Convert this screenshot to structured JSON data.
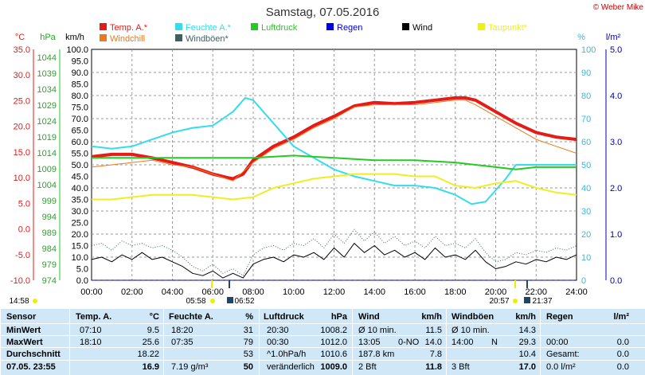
{
  "title": "Samstag, 07.05.2016",
  "copyright": "© Weber Mike",
  "units": {
    "celsius": "°C",
    "hpa": "hPa",
    "kmh": "km/h",
    "percent": "%",
    "lm2": "l/m²"
  },
  "legend": [
    {
      "label": "Temp. A.*",
      "color": "#e41b17"
    },
    {
      "label": "Feuchte A.*",
      "color": "#33ddee"
    },
    {
      "label": "Luftdruck",
      "color": "#22cc22"
    },
    {
      "label": "Regen",
      "color": "#0000dd"
    },
    {
      "label": "Wind",
      "color": "#000000"
    },
    {
      "label": "Taupunkt*",
      "color": "#eeee22"
    },
    {
      "label": "Windchill",
      "color": "#e87a1d"
    },
    {
      "label": "Windböen*",
      "color": "#406060"
    }
  ],
  "axes": {
    "temp_ticks": [
      "35.0",
      "30.0",
      "25.0",
      "20.0",
      "15.0",
      "10.0",
      "5.0",
      "0.0",
      "-5.0",
      "-10.0"
    ],
    "hpa_ticks": [
      "1044",
      "1039",
      "1034",
      "1029",
      "1024",
      "1019",
      "1014",
      "1009",
      "1004",
      "999",
      "994",
      "989",
      "984",
      "979",
      "974"
    ],
    "kmh_ticks": [
      "100.0",
      "95.0",
      "90.0",
      "85.0",
      "80.0",
      "75.0",
      "70.0",
      "65.0",
      "60.0",
      "55.0",
      "50.0",
      "45.0",
      "40.0",
      "35.0",
      "30.0",
      "25.0",
      "20.0",
      "15.0",
      "10.0",
      "5.0",
      "0.0"
    ],
    "pct_ticks": [
      "100",
      "90",
      "80",
      "70",
      "60",
      "50",
      "40",
      "30",
      "20",
      "10",
      "0"
    ],
    "rain_ticks": [
      "5.0",
      "4.0",
      "3.0",
      "2.0",
      "1.0",
      "0.0"
    ],
    "x_ticks": [
      "00:00",
      "02:00",
      "04:00",
      "06:00",
      "08:00",
      "10:00",
      "12:00",
      "14:00",
      "16:00",
      "18:00",
      "20:00",
      "22:00",
      "24:00"
    ]
  },
  "sun": {
    "rise1": "05:58",
    "rise2": "06:52",
    "set1": "20:57",
    "set2": "21:37",
    "current": "14:58"
  },
  "chart_data": {
    "type": "line",
    "x_unit": "hour",
    "x_range": [
      0,
      24
    ],
    "temp_range": [
      -10,
      35
    ],
    "kmh_range": [
      0,
      100
    ],
    "pct_range": [
      0,
      100
    ],
    "hpa_range": [
      974,
      1044
    ],
    "series": [
      {
        "name": "Temp. A.*",
        "axis": "kmh",
        "color": "#e41b17",
        "width": 4,
        "x": [
          0,
          1,
          2,
          3,
          4,
          5,
          6,
          6.7,
          7,
          7.5,
          8,
          9,
          10,
          11,
          12,
          13,
          14,
          15,
          16,
          17,
          18,
          18.5,
          19,
          20,
          21,
          22,
          23,
          24
        ],
        "y": [
          53.5,
          54.5,
          54.5,
          53,
          51,
          49,
          46,
          44.5,
          44,
          46,
          52,
          58,
          62,
          67,
          71,
          75.5,
          77,
          76.5,
          77,
          78,
          79,
          79,
          78,
          73,
          68,
          64,
          62,
          61
        ]
      },
      {
        "name": "Windchill",
        "axis": "kmh",
        "color": "#e87a1d",
        "width": 1,
        "x": [
          0,
          1,
          2,
          3,
          4,
          5,
          6,
          7,
          8,
          9,
          10,
          11,
          12,
          13,
          14,
          15,
          16,
          17,
          18,
          18.5,
          19,
          20,
          21,
          22,
          23,
          24
        ],
        "y": [
          49,
          50,
          51,
          52,
          50,
          49,
          46,
          43,
          51,
          57,
          61,
          66,
          70,
          75,
          76,
          76,
          76,
          77,
          78,
          78,
          76,
          71,
          66,
          61,
          58,
          55
        ]
      },
      {
        "name": "Feuchte A.*",
        "axis": "pct",
        "color": "#33ddee",
        "width": 2,
        "x": [
          0,
          1,
          2,
          3,
          4,
          5,
          6,
          7,
          7.6,
          8,
          9,
          10,
          11,
          12,
          13,
          14,
          15,
          16,
          17,
          18,
          18.8,
          19.5,
          20.5,
          21,
          22,
          23,
          24
        ],
        "y": [
          58,
          57,
          58,
          61,
          64,
          66,
          67,
          73,
          79,
          78,
          68,
          58,
          53,
          48,
          45,
          43,
          41,
          41,
          40,
          37,
          33,
          34,
          44,
          50,
          50,
          50,
          50
        ]
      },
      {
        "name": "Luftdruck",
        "axis": "pct",
        "color": "#22cc22",
        "width": 2,
        "x": [
          0,
          2,
          4,
          6,
          8,
          10,
          12,
          14,
          16,
          18,
          20,
          21,
          22,
          24
        ],
        "y": [
          53,
          53,
          53,
          53,
          53,
          54,
          53,
          52,
          52,
          51,
          49,
          48,
          49,
          49
        ]
      },
      {
        "name": "Taupunkt*",
        "axis": "pct",
        "color": "#eeee22",
        "width": 2,
        "x": [
          0,
          1,
          2,
          3,
          4,
          5,
          6,
          7,
          8,
          9,
          10,
          11,
          12,
          13,
          14,
          15,
          16,
          17,
          18,
          19,
          20,
          21,
          22,
          23,
          24
        ],
        "y": [
          35,
          35,
          36,
          37,
          37,
          37,
          36,
          35,
          36,
          40,
          42,
          44,
          45,
          46,
          46,
          46,
          45,
          45,
          41,
          40,
          42,
          43,
          40,
          38,
          37
        ]
      },
      {
        "name": "Wind",
        "axis": "kmh",
        "color": "#000000",
        "width": 1,
        "x": [
          0,
          0.5,
          1,
          1.5,
          2,
          2.5,
          3,
          3.5,
          4,
          4.5,
          5,
          5.5,
          6,
          6.5,
          7,
          7.5,
          8,
          8.5,
          9,
          9.5,
          10,
          10.5,
          11,
          11.5,
          12,
          12.5,
          13,
          13.5,
          14,
          14.5,
          15,
          15.5,
          16,
          16.5,
          17,
          17.5,
          18,
          18.5,
          19,
          19.5,
          20,
          20.5,
          21,
          21.5,
          22,
          22.5,
          23,
          23.5,
          24
        ],
        "y": [
          9,
          10,
          8,
          11,
          9,
          12,
          9,
          10,
          8,
          6,
          3,
          2,
          4,
          1,
          3,
          1,
          7,
          9,
          10,
          8,
          11,
          10,
          12,
          9,
          14,
          10,
          16,
          12,
          15,
          11,
          13,
          10,
          12,
          9,
          14,
          10,
          11,
          9,
          13,
          8,
          5,
          6,
          8,
          7,
          9,
          8,
          10,
          9,
          11
        ]
      },
      {
        "name": "Windböen*",
        "axis": "kmh",
        "color": "#406060",
        "width": 1,
        "dotted": true,
        "x": [
          0,
          0.5,
          1,
          1.5,
          2,
          2.5,
          3,
          3.5,
          4,
          4.5,
          5,
          5.5,
          6,
          6.5,
          7,
          7.5,
          8,
          8.5,
          9,
          9.5,
          10,
          10.5,
          11,
          11.5,
          12,
          12.5,
          13,
          13.5,
          14,
          14.5,
          15,
          15.5,
          16,
          16.5,
          17,
          17.5,
          18,
          18.5,
          19,
          19.5,
          20,
          20.5,
          21,
          21.5,
          22,
          22.5,
          23,
          23.5,
          24
        ],
        "y": [
          15,
          16,
          13,
          17,
          15,
          16,
          14,
          15,
          13,
          10,
          6,
          4,
          7,
          3,
          5,
          2,
          11,
          14,
          15,
          13,
          16,
          15,
          18,
          14,
          20,
          16,
          22,
          17,
          21,
          16,
          19,
          15,
          17,
          14,
          19,
          15,
          16,
          14,
          18,
          12,
          8,
          9,
          12,
          11,
          13,
          12,
          14,
          13,
          15
        ]
      },
      {
        "name": "Regen",
        "axis": "kmh",
        "color": "#0000dd",
        "width": 1,
        "dashed": true,
        "x": [
          0,
          24
        ],
        "y": [
          0,
          0
        ]
      }
    ]
  },
  "table": {
    "headers": [
      "Sensor",
      "Temp. A.",
      "°C",
      "Feuchte A.",
      "%",
      "Luftdruck",
      "hPa",
      "Wind",
      "km/h",
      "Windböen",
      "km/h",
      "Regen",
      "l/m²"
    ],
    "row_labels": [
      "MinWert",
      "MaxWert",
      "Durchschnitt",
      "07.05. 23:55"
    ],
    "temp": [
      [
        "07:10",
        "9.5"
      ],
      [
        "18:10",
        "25.6"
      ],
      [
        "",
        "18.22"
      ],
      [
        "",
        "16.9"
      ]
    ],
    "hum": [
      [
        "18:20",
        "31"
      ],
      [
        "07:35",
        "79"
      ],
      [
        "",
        "53"
      ],
      [
        "7.19 g/m³",
        "50"
      ]
    ],
    "press": [
      [
        "20:30",
        "1008.2"
      ],
      [
        "00:30",
        "1012.0"
      ],
      [
        "^1.0hPa/h",
        "1010.6"
      ],
      [
        "veränderlich",
        "1009.0"
      ]
    ],
    "wind": [
      [
        "Ø 10 min.",
        "",
        "11.5"
      ],
      [
        "13:05",
        "0-NO",
        "14.0"
      ],
      [
        "187.8 km",
        "",
        "7.8"
      ],
      [
        "2 Bft",
        "",
        "11.8"
      ]
    ],
    "gust": [
      [
        "Ø 10 min.",
        "",
        "14.3"
      ],
      [
        "14:00",
        "N",
        "29.3"
      ],
      [
        "",
        "",
        "10.4"
      ],
      [
        "3 Bft",
        "",
        "17.0"
      ]
    ],
    "rain": [
      [
        "",
        ""
      ],
      [
        "00:00",
        "0.0"
      ],
      [
        "Gesamt:",
        "0.0"
      ],
      [
        "0.0 l/m²",
        "0.0"
      ]
    ]
  }
}
